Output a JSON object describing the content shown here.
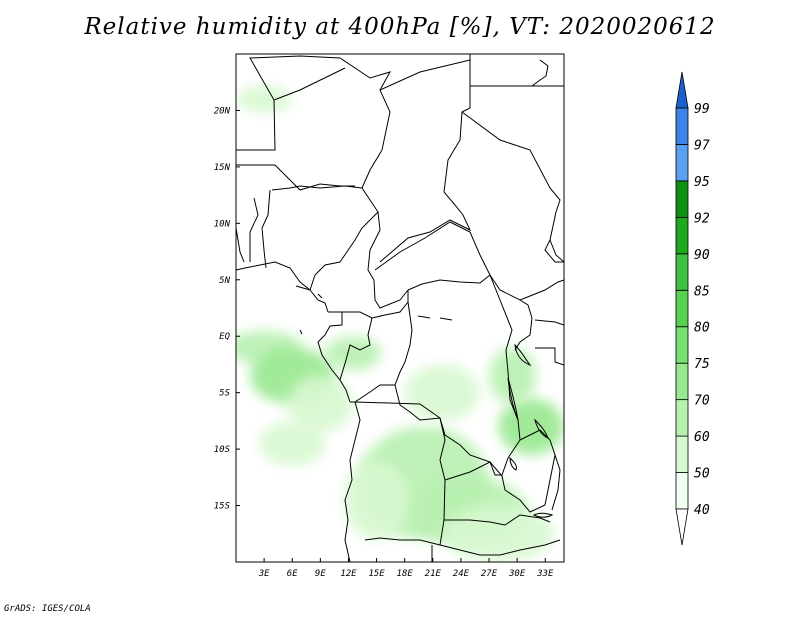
{
  "title": "Relative humidity at 400hPa [%], VT: 2020020612",
  "footer": "GrADS: IGES/COLA",
  "chart_data": {
    "type": "heatmap",
    "variable": "Relative humidity at 400hPa",
    "units": "%",
    "valid_time": "2020020612",
    "lon_range": [
      0,
      35
    ],
    "lat_range": [
      -20,
      25
    ],
    "x_ticks": [
      {
        "value": 3,
        "label": "3E"
      },
      {
        "value": 6,
        "label": "6E"
      },
      {
        "value": 9,
        "label": "9E"
      },
      {
        "value": 12,
        "label": "12E"
      },
      {
        "value": 15,
        "label": "15E"
      },
      {
        "value": 18,
        "label": "18E"
      },
      {
        "value": 21,
        "label": "21E"
      },
      {
        "value": 24,
        "label": "24E"
      },
      {
        "value": 27,
        "label": "27E"
      },
      {
        "value": 30,
        "label": "30E"
      },
      {
        "value": 33,
        "label": "33E"
      }
    ],
    "y_ticks": [
      {
        "value": 20,
        "label": "20N"
      },
      {
        "value": 15,
        "label": "15N"
      },
      {
        "value": 10,
        "label": "10N"
      },
      {
        "value": 5,
        "label": "5N"
      },
      {
        "value": 0,
        "label": "EQ"
      },
      {
        "value": -5,
        "label": "5S"
      },
      {
        "value": -10,
        "label": "10S"
      },
      {
        "value": -15,
        "label": "15S"
      }
    ],
    "colorbar": {
      "levels": [
        "40",
        "50",
        "60",
        "70",
        "75",
        "80",
        "85",
        "90",
        "92",
        "95",
        "97",
        "99"
      ],
      "colors": [
        "#f0fff0",
        "#d8f8d0",
        "#b8f0b0",
        "#98e890",
        "#78e070",
        "#58d050",
        "#40c040",
        "#20a820",
        "#109010",
        "#5aa0f0",
        "#3c84e8",
        "#1c60d0",
        "#2070d8"
      ],
      "lower_color": "#ffffff",
      "upper_color": "#1c60d0"
    },
    "moist_regions": [
      {
        "lon": 3.0,
        "lat": -1.0,
        "rlon": 4.0,
        "rlat": 1.5,
        "value": 60
      },
      {
        "lon": 6.0,
        "lat": -3.5,
        "rlon": 4.5,
        "rlat": 2.5,
        "value": 70
      },
      {
        "lon": 9.0,
        "lat": -6.0,
        "rlon": 3.5,
        "rlat": 2.5,
        "value": 55
      },
      {
        "lon": 12.5,
        "lat": -1.5,
        "rlon": 3.0,
        "rlat": 1.5,
        "value": 60
      },
      {
        "lon": 6.0,
        "lat": -9.5,
        "rlon": 3.5,
        "rlat": 2.0,
        "value": 50
      },
      {
        "lon": 20.0,
        "lat": -13.0,
        "rlon": 7.0,
        "rlat": 5.0,
        "value": 60
      },
      {
        "lon": 15.0,
        "lat": -14.5,
        "rlon": 3.5,
        "rlat": 3.5,
        "value": 50
      },
      {
        "lon": 25.0,
        "lat": -15.5,
        "rlon": 6.0,
        "rlat": 3.0,
        "value": 60
      },
      {
        "lon": 28.0,
        "lat": -17.5,
        "rlon": 6.0,
        "rlat": 2.5,
        "value": 55
      },
      {
        "lon": 31.5,
        "lat": -8.0,
        "rlon": 3.5,
        "rlat": 2.5,
        "value": 70
      },
      {
        "lon": 29.5,
        "lat": -3.5,
        "rlon": 2.5,
        "rlat": 2.5,
        "value": 60
      },
      {
        "lon": 22.0,
        "lat": -5.0,
        "rlon": 4.0,
        "rlat": 2.5,
        "value": 50
      },
      {
        "lon": 3.0,
        "lat": 21.0,
        "rlon": 3.0,
        "rlat": 1.2,
        "value": 50
      }
    ]
  }
}
